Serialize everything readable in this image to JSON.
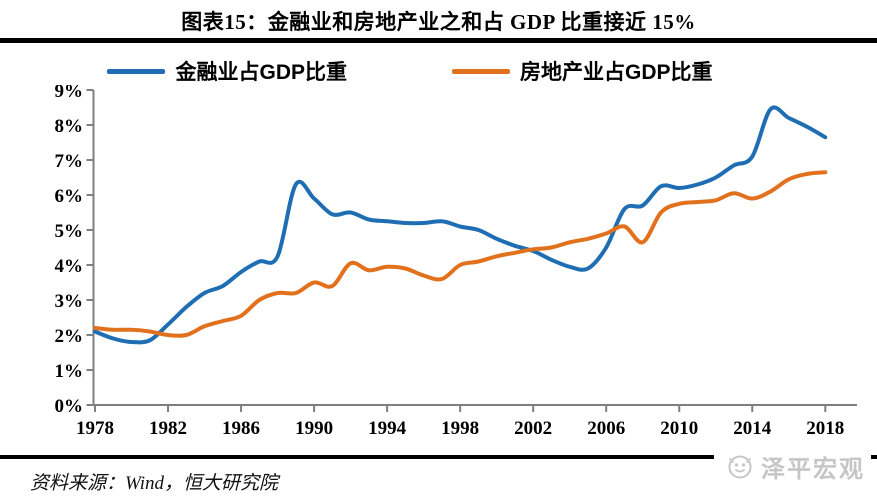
{
  "header": {
    "title": "图表15：金融业和房地产业之和占 GDP 比重接近 15%"
  },
  "footer": {
    "source": "资料来源：Wind，恒大研究院",
    "watermark": "泽平宏观"
  },
  "colors": {
    "finance_line": "#1f6eb3",
    "realestate_line": "#e2711d",
    "axis": "#7f7f7f",
    "rule": "#000000",
    "watermark": "#c6c6c6"
  },
  "chart_data": {
    "type": "line",
    "title": "图表15：金融业和房地产业之和占 GDP 比重接近 15%",
    "xlabel": "",
    "ylabel": "",
    "ylim": [
      0,
      9
    ],
    "grid": false,
    "legend_position": "top",
    "yticks": [
      "0%",
      "1%",
      "2%",
      "3%",
      "4%",
      "5%",
      "6%",
      "7%",
      "8%",
      "9%"
    ],
    "xticks": [
      1978,
      1982,
      1986,
      1990,
      1994,
      1998,
      2002,
      2006,
      2010,
      2014,
      2018
    ],
    "x": [
      1978,
      1979,
      1980,
      1981,
      1982,
      1983,
      1984,
      1985,
      1986,
      1987,
      1988,
      1989,
      1990,
      1991,
      1992,
      1993,
      1994,
      1995,
      1996,
      1997,
      1998,
      1999,
      2000,
      2001,
      2002,
      2003,
      2004,
      2005,
      2006,
      2007,
      2008,
      2009,
      2010,
      2011,
      2012,
      2013,
      2014,
      2015,
      2016,
      2017,
      2018
    ],
    "series": [
      {
        "name": "金融业占GDP比重",
        "color": "#1f6eb3",
        "values": [
          2.1,
          1.9,
          1.8,
          1.85,
          2.3,
          2.8,
          3.2,
          3.4,
          3.8,
          4.1,
          4.25,
          6.3,
          5.9,
          5.45,
          5.5,
          5.3,
          5.25,
          5.2,
          5.2,
          5.25,
          5.1,
          5.0,
          4.75,
          4.55,
          4.4,
          4.15,
          3.95,
          3.9,
          4.5,
          5.6,
          5.7,
          6.25,
          6.2,
          6.3,
          6.5,
          6.85,
          7.1,
          8.45,
          8.2,
          7.95,
          7.65
        ]
      },
      {
        "name": "房地产业占GDP比重",
        "color": "#e2711d",
        "values": [
          2.2,
          2.15,
          2.15,
          2.1,
          2.0,
          2.0,
          2.25,
          2.4,
          2.55,
          3.0,
          3.2,
          3.2,
          3.5,
          3.4,
          4.05,
          3.85,
          3.95,
          3.9,
          3.7,
          3.6,
          4.0,
          4.1,
          4.25,
          4.35,
          4.45,
          4.5,
          4.65,
          4.75,
          4.9,
          5.1,
          4.65,
          5.5,
          5.75,
          5.8,
          5.85,
          6.05,
          5.9,
          6.1,
          6.45,
          6.6,
          6.65
        ]
      }
    ]
  }
}
